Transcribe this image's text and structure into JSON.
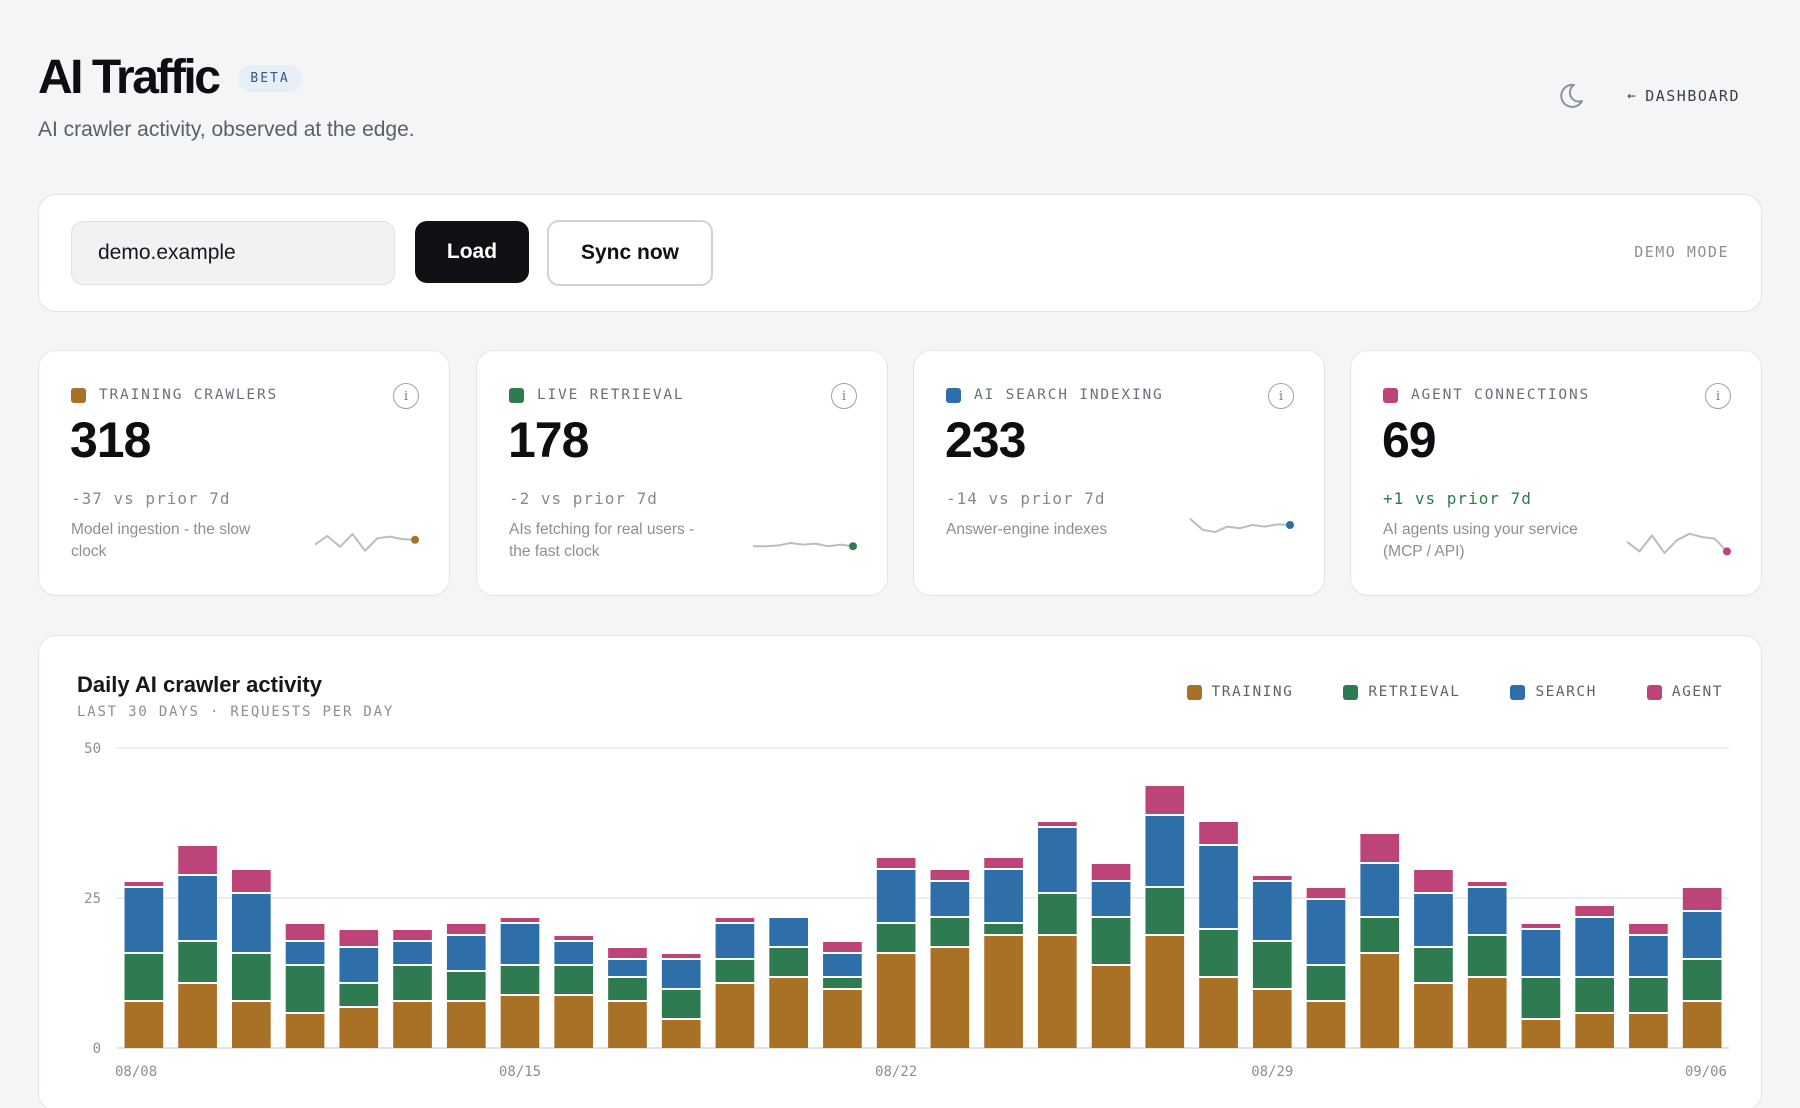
{
  "header": {
    "title": "AI Traffic",
    "badge": "BETA",
    "subtitle": "AI crawler activity, observed at the edge."
  },
  "nav": {
    "theme_icon": "moon-icon",
    "back_arrow": "←",
    "dashboard_label": "DASHBOARD"
  },
  "controls": {
    "domain_value": "demo.example",
    "load_label": "Load",
    "sync_label": "Sync now",
    "mode_label": "DEMO MODE"
  },
  "colors": {
    "training": "#a97125",
    "retrieval": "#2f7b51",
    "search": "#2f6fa9",
    "agent": "#bd4479"
  },
  "stats": [
    {
      "label": "TRAINING CRAWLERS",
      "value": "318",
      "delta": "-37 vs prior 7d",
      "desc": "Model ingestion - the slow clock",
      "color": "#a97125",
      "trend": "down",
      "spark": [
        0.55,
        0.28,
        0.62,
        0.22,
        0.74,
        0.35,
        0.3,
        0.38,
        0.4
      ]
    },
    {
      "label": "LIVE RETRIEVAL",
      "value": "178",
      "delta": "-2 vs prior 7d",
      "desc": "AIs fetching for real users - the fast clock",
      "color": "#2f7b51",
      "trend": "down",
      "spark": [
        0.6,
        0.6,
        0.58,
        0.5,
        0.55,
        0.52,
        0.6,
        0.55,
        0.6
      ]
    },
    {
      "label": "AI SEARCH INDEXING",
      "value": "233",
      "delta": "-14 vs prior 7d",
      "desc": "Answer-engine indexes",
      "color": "#2f6fa9",
      "trend": "down",
      "spark": [
        0.3,
        0.65,
        0.72,
        0.55,
        0.6,
        0.5,
        0.55,
        0.48,
        0.5
      ]
    },
    {
      "label": "AGENT CONNECTIONS",
      "value": "69",
      "delta": "+1 vs prior 7d",
      "desc": "AI agents using your service (MCP / API)",
      "color": "#bd4479",
      "trend": "up",
      "spark": [
        0.4,
        0.7,
        0.2,
        0.75,
        0.35,
        0.15,
        0.25,
        0.3,
        0.7
      ]
    }
  ],
  "info_icon": "i",
  "chart": {
    "title": "Daily AI crawler activity",
    "subtitle": "LAST 30 DAYS · REQUESTS PER DAY",
    "legend": [
      "TRAINING",
      "RETRIEVAL",
      "SEARCH",
      "AGENT"
    ]
  },
  "chart_data": {
    "type": "bar",
    "stacked": true,
    "ylim": [
      0,
      50
    ],
    "yticks": [
      0,
      25,
      50
    ],
    "grid": true,
    "legend_position": "top-right",
    "x_tick_labels": [
      "08/08",
      "08/15",
      "08/22",
      "08/29",
      "09/06"
    ],
    "x_tick_indices": [
      0,
      7,
      14,
      21,
      29
    ],
    "series": [
      {
        "name": "TRAINING",
        "color": "#a97125",
        "values": [
          8,
          11,
          8,
          6,
          7,
          8,
          8,
          9,
          9,
          8,
          5,
          11,
          12,
          10,
          16,
          17,
          19,
          19,
          14,
          19,
          12,
          10,
          8,
          16,
          11,
          12,
          5,
          6,
          6,
          8
        ]
      },
      {
        "name": "RETRIEVAL",
        "color": "#2f7b51",
        "values": [
          8,
          7,
          8,
          8,
          4,
          6,
          5,
          5,
          5,
          4,
          5,
          4,
          5,
          2,
          5,
          5,
          2,
          7,
          8,
          8,
          8,
          8,
          6,
          6,
          6,
          7,
          7,
          6,
          6,
          7
        ]
      },
      {
        "name": "SEARCH",
        "color": "#2f6fa9",
        "values": [
          11,
          11,
          10,
          4,
          6,
          4,
          6,
          7,
          4,
          3,
          5,
          6,
          5,
          4,
          9,
          6,
          9,
          11,
          6,
          12,
          14,
          10,
          11,
          9,
          9,
          8,
          8,
          10,
          7,
          8
        ]
      },
      {
        "name": "AGENT",
        "color": "#bd4479",
        "values": [
          1,
          5,
          4,
          3,
          3,
          2,
          2,
          1,
          1,
          2,
          1,
          1,
          0,
          2,
          2,
          2,
          2,
          1,
          3,
          5,
          4,
          1,
          2,
          5,
          4,
          1,
          1,
          2,
          2,
          4
        ]
      }
    ]
  }
}
